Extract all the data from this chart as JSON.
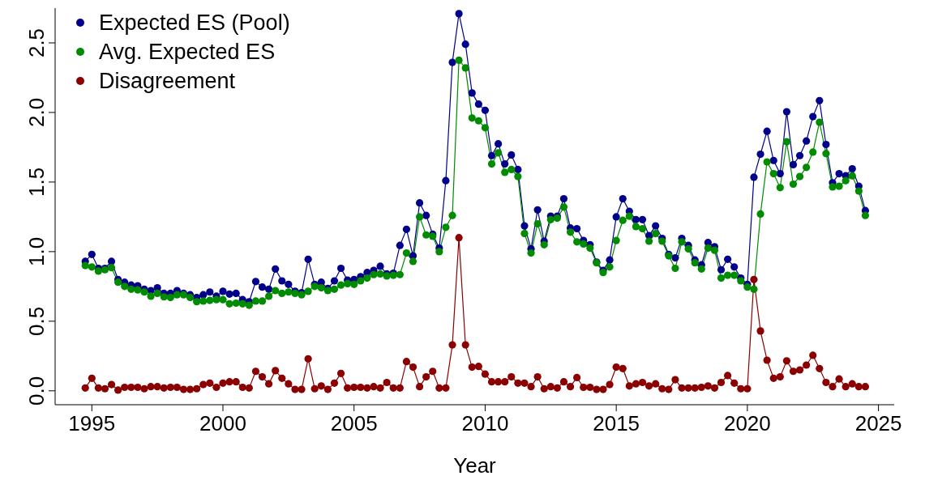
{
  "chart_data": {
    "type": "line",
    "xlabel": "Year",
    "marker": "circle",
    "line_style": "solid",
    "grid": false,
    "legend": "top left",
    "x": [
      1994.75,
      1995,
      1995.25,
      1995.5,
      1995.75,
      1996,
      1996.25,
      1996.5,
      1996.75,
      1997,
      1997.25,
      1997.5,
      1997.75,
      1998,
      1998.25,
      1998.5,
      1998.75,
      1999,
      1999.25,
      1999.5,
      1999.75,
      2000,
      2000.25,
      2000.5,
      2000.75,
      2001,
      2001.25,
      2001.5,
      2001.75,
      2002,
      2002.25,
      2002.5,
      2002.75,
      2003,
      2003.25,
      2003.5,
      2003.75,
      2004,
      2004.25,
      2004.5,
      2004.75,
      2005,
      2005.25,
      2005.5,
      2005.75,
      2006,
      2006.25,
      2006.5,
      2006.75,
      2007,
      2007.25,
      2007.5,
      2007.75,
      2008,
      2008.25,
      2008.5,
      2008.75,
      2009,
      2009.25,
      2009.5,
      2009.75,
      2010,
      2010.25,
      2010.5,
      2010.75,
      2011,
      2011.25,
      2011.5,
      2011.75,
      2012,
      2012.25,
      2012.5,
      2012.75,
      2013,
      2013.25,
      2013.5,
      2013.75,
      2014,
      2014.25,
      2014.5,
      2014.75,
      2015,
      2015.25,
      2015.5,
      2015.75,
      2016,
      2016.25,
      2016.5,
      2016.75,
      2017,
      2017.25,
      2017.5,
      2017.75,
      2018,
      2018.25,
      2018.5,
      2018.75,
      2019,
      2019.25,
      2019.5,
      2019.75,
      2020,
      2020.25,
      2020.5,
      2020.75,
      2021,
      2021.25,
      2021.5,
      2021.75,
      2022,
      2022.25,
      2022.5,
      2022.75,
      2023,
      2023.25,
      2023.5,
      2023.75,
      2024,
      2024.25,
      2024.5
    ],
    "series": [
      {
        "name": "Expected ES (Pool)",
        "color": "#00008b",
        "values": [
          0.93,
          0.98,
          0.88,
          0.88,
          0.93,
          0.8,
          0.78,
          0.76,
          0.755,
          0.73,
          0.72,
          0.74,
          0.7,
          0.7,
          0.72,
          0.7,
          0.69,
          0.67,
          0.69,
          0.71,
          0.68,
          0.715,
          0.695,
          0.7,
          0.655,
          0.64,
          0.785,
          0.745,
          0.73,
          0.875,
          0.79,
          0.765,
          0.715,
          0.705,
          0.945,
          0.765,
          0.78,
          0.735,
          0.79,
          0.88,
          0.795,
          0.8,
          0.82,
          0.85,
          0.865,
          0.895,
          0.84,
          0.845,
          1.045,
          1.16,
          0.97,
          1.35,
          1.26,
          1.125,
          1.025,
          1.51,
          2.36,
          2.71,
          2.49,
          2.14,
          2.06,
          2.015,
          1.69,
          1.775,
          1.63,
          1.695,
          1.59,
          1.185,
          1.02,
          1.3,
          1.075,
          1.255,
          1.255,
          1.38,
          1.17,
          1.165,
          1.08,
          1.05,
          0.925,
          0.865,
          0.94,
          1.25,
          1.38,
          1.29,
          1.23,
          1.23,
          1.115,
          1.185,
          1.095,
          0.98,
          0.955,
          1.095,
          1.045,
          0.94,
          0.905,
          1.065,
          1.035,
          0.87,
          0.945,
          0.89,
          0.81,
          0.765,
          1.535,
          1.7,
          1.865,
          1.655,
          1.56,
          2.005,
          1.625,
          1.69,
          1.795,
          1.97,
          2.085,
          1.77,
          1.495,
          1.56,
          1.545,
          1.595,
          1.47,
          1.295
        ]
      },
      {
        "name": "Avg. Expected ES",
        "color": "#008b00",
        "values": [
          0.9,
          0.89,
          0.86,
          0.87,
          0.885,
          0.78,
          0.75,
          0.73,
          0.725,
          0.71,
          0.68,
          0.7,
          0.675,
          0.67,
          0.69,
          0.69,
          0.67,
          0.64,
          0.645,
          0.65,
          0.655,
          0.655,
          0.625,
          0.63,
          0.625,
          0.615,
          0.645,
          0.645,
          0.68,
          0.72,
          0.7,
          0.71,
          0.7,
          0.69,
          0.715,
          0.75,
          0.74,
          0.72,
          0.73,
          0.76,
          0.77,
          0.765,
          0.79,
          0.81,
          0.835,
          0.84,
          0.825,
          0.83,
          0.835,
          0.99,
          0.93,
          1.25,
          1.12,
          1.11,
          1.0,
          1.175,
          1.26,
          2.375,
          2.32,
          1.96,
          1.94,
          1.89,
          1.63,
          1.71,
          1.57,
          1.59,
          1.54,
          1.13,
          0.99,
          1.2,
          1.05,
          1.23,
          1.24,
          1.32,
          1.14,
          1.07,
          1.055,
          1.025,
          0.92,
          0.85,
          0.89,
          1.08,
          1.225,
          1.255,
          1.18,
          1.165,
          1.075,
          1.13,
          1.075,
          0.97,
          0.88,
          1.07,
          1.02,
          0.92,
          0.875,
          1.025,
          1.01,
          0.81,
          0.83,
          0.83,
          0.79,
          0.745,
          0.73,
          1.27,
          1.645,
          1.56,
          1.46,
          1.79,
          1.485,
          1.54,
          1.605,
          1.715,
          1.93,
          1.705,
          1.465,
          1.47,
          1.51,
          1.545,
          1.435,
          1.26
        ]
      },
      {
        "name": "Disagreement",
        "color": "#8b0000",
        "values": [
          0.02,
          0.09,
          0.02,
          0.015,
          0.045,
          0.005,
          0.025,
          0.025,
          0.025,
          0.015,
          0.03,
          0.03,
          0.02,
          0.025,
          0.025,
          0.01,
          0.01,
          0.015,
          0.045,
          0.055,
          0.025,
          0.055,
          0.065,
          0.065,
          0.025,
          0.02,
          0.14,
          0.1,
          0.05,
          0.145,
          0.09,
          0.05,
          0.01,
          0.01,
          0.23,
          0.015,
          0.035,
          0.01,
          0.055,
          0.125,
          0.02,
          0.025,
          0.025,
          0.02,
          0.03,
          0.02,
          0.06,
          0.02,
          0.02,
          0.21,
          0.17,
          0.03,
          0.1,
          0.14,
          0.02,
          0.02,
          0.33,
          1.1,
          0.33,
          0.17,
          0.175,
          0.12,
          0.065,
          0.065,
          0.065,
          0.1,
          0.055,
          0.055,
          0.03,
          0.1,
          0.015,
          0.03,
          0.02,
          0.065,
          0.03,
          0.095,
          0.025,
          0.025,
          0.01,
          0.01,
          0.045,
          0.17,
          0.16,
          0.035,
          0.05,
          0.06,
          0.035,
          0.05,
          0.015,
          0.01,
          0.08,
          0.02,
          0.02,
          0.02,
          0.025,
          0.035,
          0.02,
          0.06,
          0.11,
          0.055,
          0.015,
          0.015,
          0.8,
          0.43,
          0.22,
          0.09,
          0.1,
          0.215,
          0.14,
          0.15,
          0.185,
          0.255,
          0.16,
          0.06,
          0.03,
          0.085,
          0.03,
          0.05,
          0.03,
          0.03
        ]
      }
    ],
    "xlim": [
      1993.6,
      2025.6
    ],
    "xticks": [
      1995,
      2000,
      2005,
      2010,
      2015,
      2020,
      2025
    ],
    "ylim": [
      -0.1,
      2.75
    ],
    "yticks": [
      {
        "value": 0,
        "label": "0.0"
      },
      0.5,
      {
        "value": 1,
        "label": "1.0"
      },
      1.5,
      {
        "value": 2,
        "label": "2.0"
      },
      2.5
    ]
  }
}
